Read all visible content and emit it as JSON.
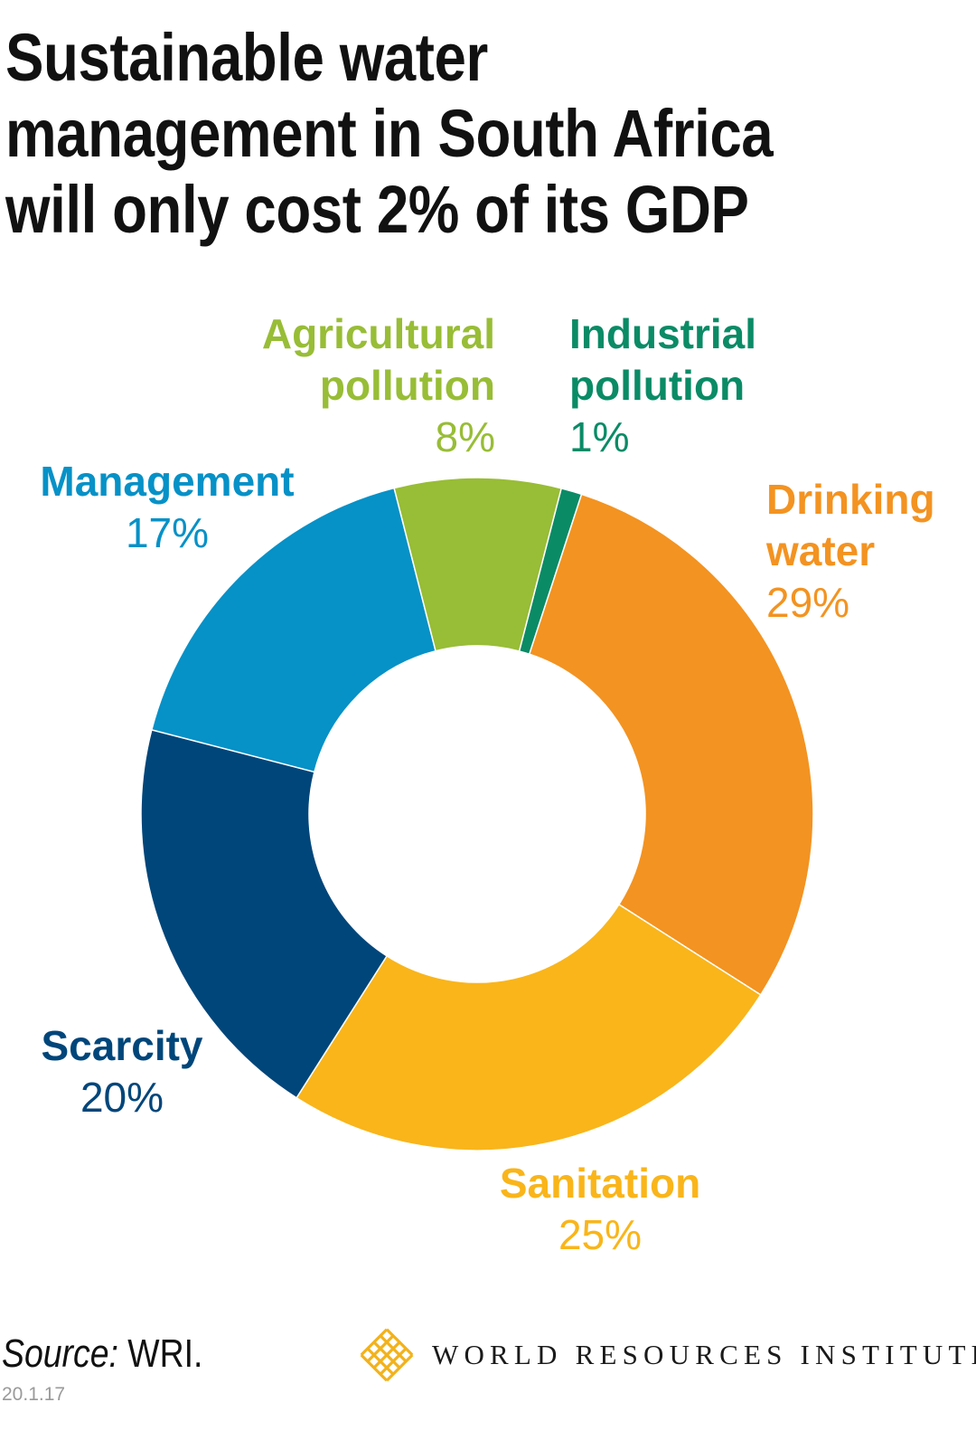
{
  "title": "Sustainable water management in South Africa will only cost 2% of its GDP",
  "chart_data": {
    "type": "pie",
    "variant": "donut",
    "title": "Sustainable water management in South Africa will only cost 2% of its GDP",
    "slices": [
      {
        "label_lines": [
          "Industrial",
          "pollution"
        ],
        "value": 1,
        "display": "1%",
        "color": "#0a8b66"
      },
      {
        "label_lines": [
          "Drinking",
          "water"
        ],
        "value": 29,
        "display": "29%",
        "color": "#f39321"
      },
      {
        "label_lines": [
          "Sanitation"
        ],
        "value": 25,
        "display": "25%",
        "color": "#f9b51a"
      },
      {
        "label_lines": [
          "Scarcity"
        ],
        "value": 20,
        "display": "20%",
        "color": "#00467a"
      },
      {
        "label_lines": [
          "Management"
        ],
        "value": 17,
        "display": "17%",
        "color": "#0691c7"
      },
      {
        "label_lines": [
          "Agricultural",
          "pollution"
        ],
        "value": 8,
        "display": "8%",
        "color": "#98bd36"
      }
    ]
  },
  "footer": {
    "source_label": "Source:",
    "source_value": "WRI.",
    "date": "20.1.17",
    "brand_name": "WORLD RESOURCES INSTITUTE",
    "brand_color": "#f2b21c"
  }
}
